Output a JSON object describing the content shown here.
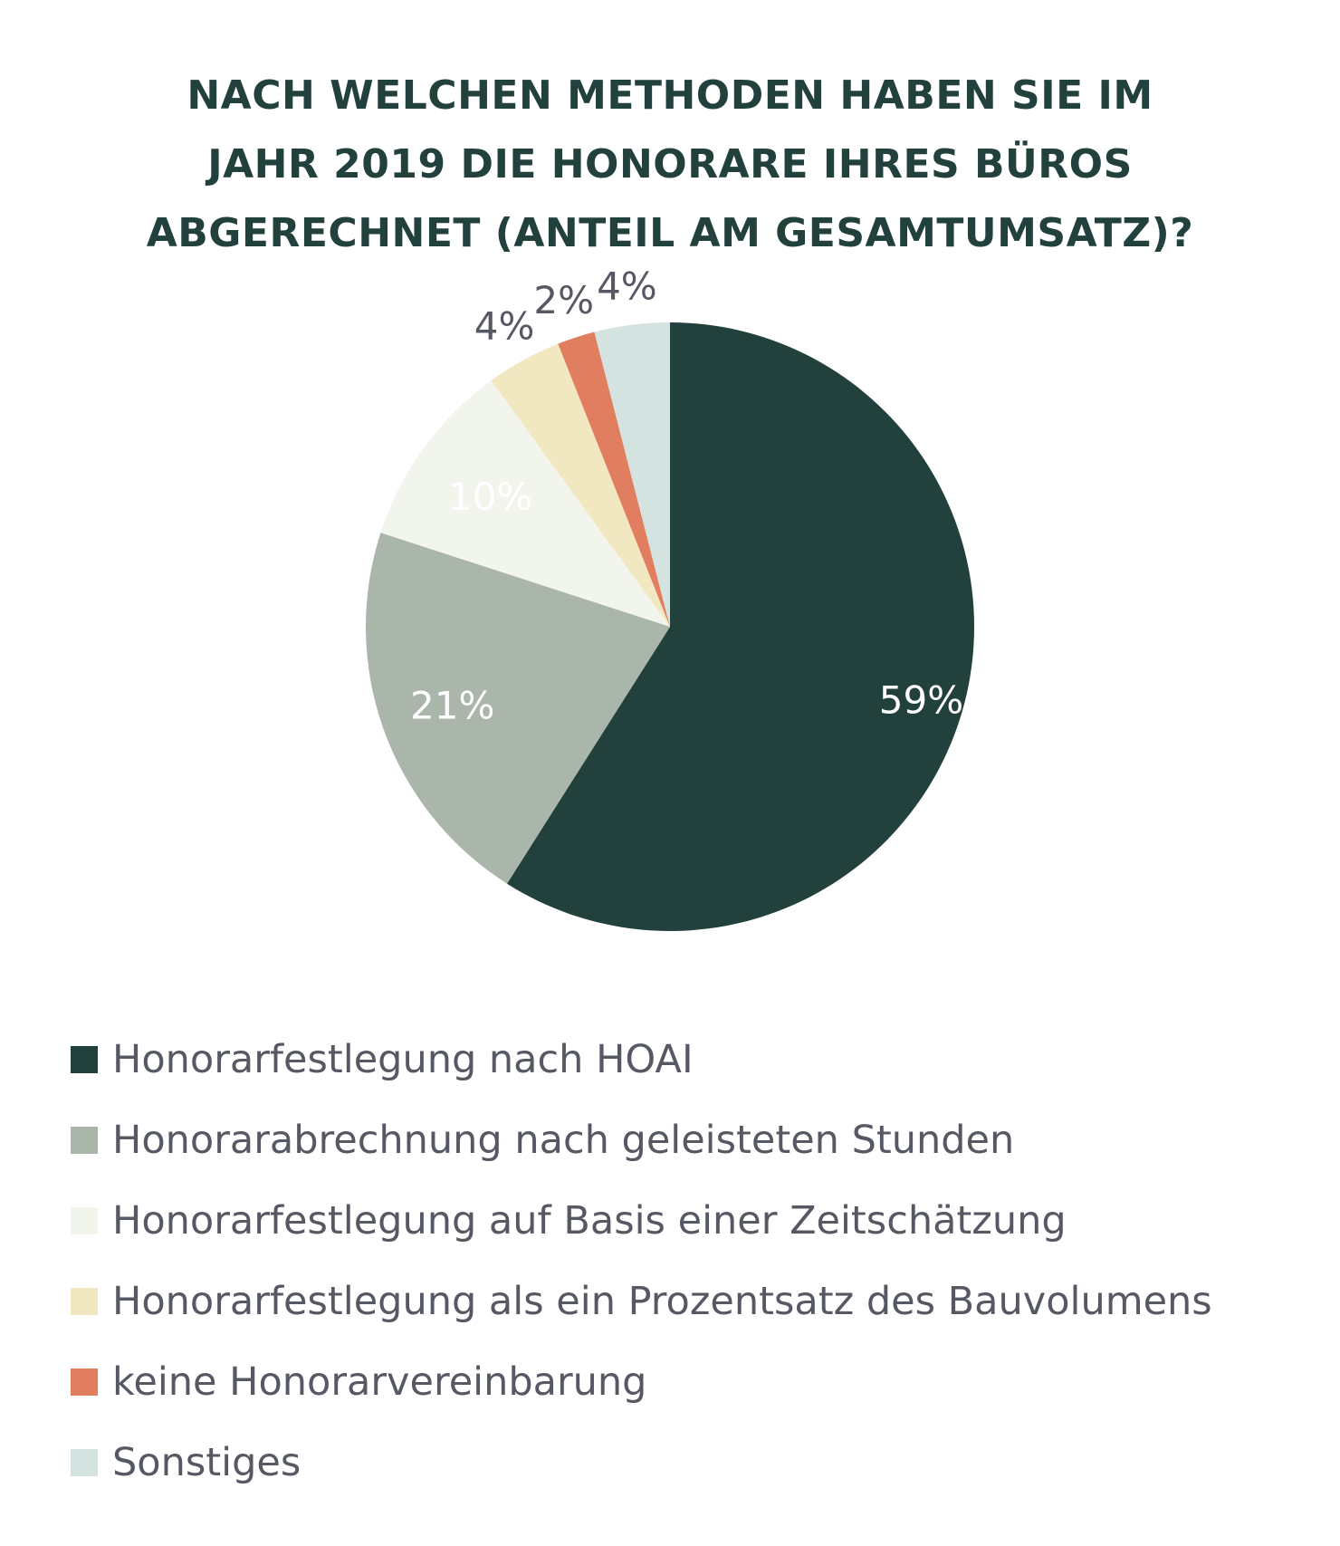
{
  "chart_data": {
    "type": "pie",
    "title_lines": [
      "NACH WELCHEN METHODEN HABEN SIE IM",
      "JAHR 2019 DIE HONORARE IHRES BÜROS",
      "ABGERECHNET (ANTEIL AM GESAMTUMSATZ)?"
    ],
    "unit": "%",
    "slices": [
      {
        "name": "Honorarfestlegung nach HOAI",
        "value": 59,
        "label": "59%",
        "color": "#22413c",
        "label_color": "#ffffff"
      },
      {
        "name": "Honorarabrechnung nach geleisteten Stunden",
        "value": 21,
        "label": "21%",
        "color": "#abb6aa",
        "label_color": "#ffffff"
      },
      {
        "name": "Honorarfestlegung auf Basis einer Zeitschätzung",
        "value": 10,
        "label": "10%",
        "color": "#f2f5eb",
        "label_color": "#ffffff"
      },
      {
        "name": "Honorarfestlegung als ein Prozentsatz des Bauvolumens",
        "value": 4,
        "label": "4%",
        "color": "#f1e7c0",
        "label_color": "#565963"
      },
      {
        "name": "keine Honorarvereinbarung",
        "value": 2,
        "label": "2%",
        "color": "#e07e5f",
        "label_color": "#565963"
      },
      {
        "name": "Sonstiges",
        "value": 4,
        "label": "4%",
        "color": "#d4e2e0",
        "label_color": "#565963"
      }
    ],
    "start": "12 o'clock",
    "direction": "clockwise",
    "legend_position": "bottom-left"
  }
}
